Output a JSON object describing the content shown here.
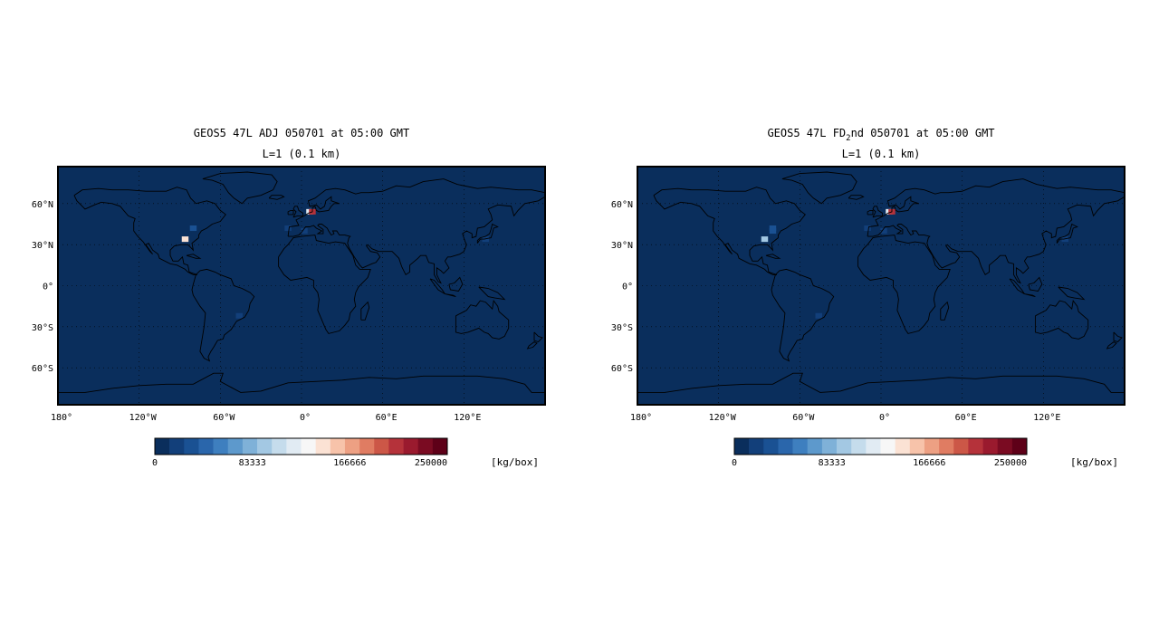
{
  "panels": [
    {
      "title_parts": [
        "GEOS5 47L ADJ 050701 at 05:00 GMT"
      ],
      "subtitle": "L=1 (0.1 km)"
    },
    {
      "title_parts": [
        "GEOS5 47L FD",
        "2",
        "nd 050701 at 05:00 GMT"
      ],
      "subtitle": "L=1 (0.1 km)"
    }
  ],
  "lat_labels": [
    "60°N",
    "30°N",
    "0°",
    "30°S",
    "60°S"
  ],
  "lon_labels": [
    "180°",
    "120°W",
    "60°W",
    "0°",
    "60°E",
    "120°E"
  ],
  "colorbar": {
    "tick_labels": [
      "0",
      "83333",
      "166666",
      "250000"
    ],
    "unit": "[kg/box]",
    "colors": [
      "#0a2e5c",
      "#123f7a",
      "#1a5193",
      "#2a66ab",
      "#3e7fbf",
      "#5d99cc",
      "#7fb1d8",
      "#a3c8e3",
      "#c5dcec",
      "#e1ebf3",
      "#f7f7f7",
      "#fbe2d4",
      "#f7c3aa",
      "#eda083",
      "#e07c62",
      "#cc5747",
      "#b5323a",
      "#9a1a2e",
      "#7a0b22",
      "#5e0018"
    ],
    "background_color": "#0a2e5c"
  },
  "map_extent": {
    "lon": [
      -180,
      180
    ],
    "lat": [
      -90,
      90
    ]
  },
  "grid_lon": [
    -120,
    -60,
    0,
    60,
    120
  ],
  "grid_lat": [
    -60,
    -30,
    0,
    30,
    60
  ],
  "chart_data": [
    {
      "type": "heatmap",
      "title": "GEOS5 47L ADJ 050701 at 05:00 GMT",
      "subtitle": "L=1 (0.1 km)",
      "value_range": [
        0,
        250000
      ],
      "unit": "kg/box",
      "cells": [
        {
          "lon": 6,
          "lat": 54,
          "value": 120000
        },
        {
          "lon": 8,
          "lat": 54,
          "value": 200000
        },
        {
          "lon": -86,
          "lat": 34,
          "value": 138000
        },
        {
          "lon": -80,
          "lat": 42,
          "value": 35000
        },
        {
          "lon": -10,
          "lat": 42,
          "value": 15000
        },
        {
          "lon": 2,
          "lat": 40,
          "value": 15000
        },
        {
          "lon": 16,
          "lat": 40,
          "value": 12000
        },
        {
          "lon": 126,
          "lat": 36,
          "value": 12000
        },
        {
          "lon": 136,
          "lat": 34,
          "value": 15000
        },
        {
          "lon": -46,
          "lat": -22,
          "value": 20000
        }
      ]
    },
    {
      "type": "heatmap",
      "title": "GEOS5 47L FD2nd 050701 at 05:00 GMT",
      "subtitle": "L=1 (0.1 km)",
      "value_range": [
        0,
        250000
      ],
      "unit": "kg/box",
      "cells": [
        {
          "lon": 6,
          "lat": 54,
          "value": 120000
        },
        {
          "lon": 8,
          "lat": 54,
          "value": 200000
        },
        {
          "lon": -86,
          "lat": 34,
          "value": 90000
        },
        {
          "lon": -80,
          "lat": 40,
          "value": 35000
        },
        {
          "lon": -80,
          "lat": 42,
          "value": 30000
        },
        {
          "lon": -10,
          "lat": 42,
          "value": 15000
        },
        {
          "lon": 2,
          "lat": 40,
          "value": 15000
        },
        {
          "lon": 16,
          "lat": 40,
          "value": 12000
        },
        {
          "lon": 126,
          "lat": 36,
          "value": 12000
        },
        {
          "lon": 136,
          "lat": 34,
          "value": 15000
        },
        {
          "lon": -46,
          "lat": -22,
          "value": 20000
        }
      ]
    }
  ]
}
